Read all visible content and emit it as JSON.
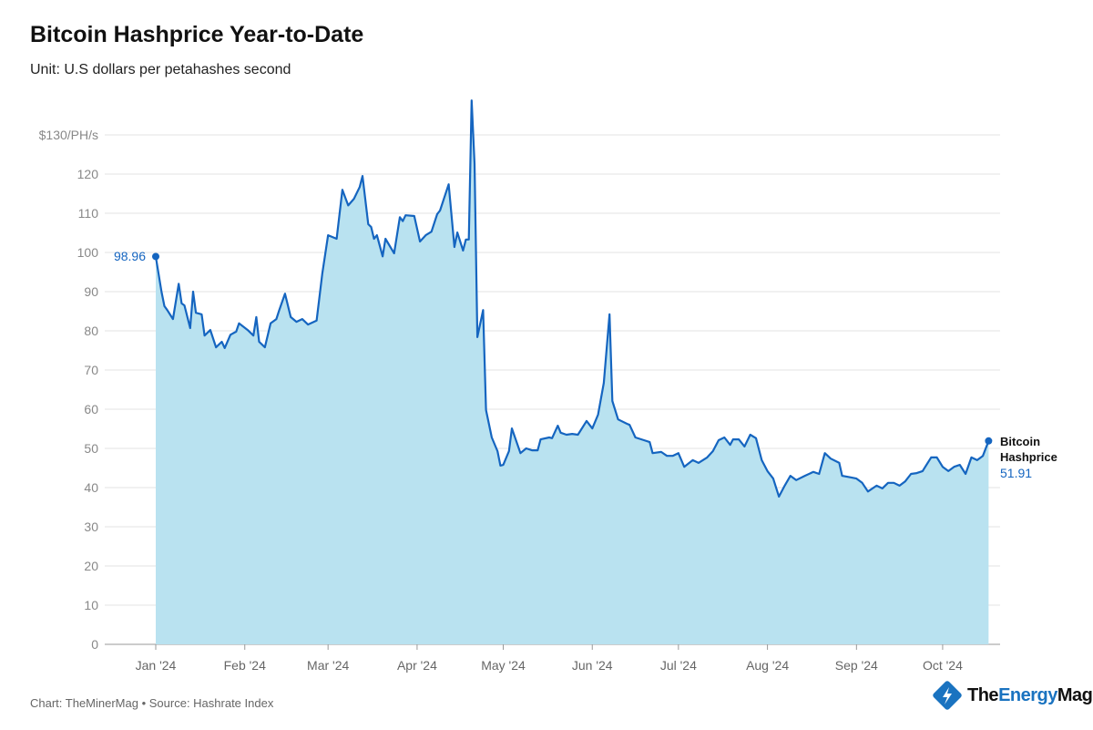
{
  "header": {
    "title": "Bitcoin Hashprice Year-to-Date",
    "subtitle": "Unit: U.S dollars per petahashes second"
  },
  "footer": {
    "credit": "Chart: TheMinerMag • Source: Hashrate Index"
  },
  "logo": {
    "part1": "The",
    "part2": "Energy",
    "part3": "Mag",
    "color": "#1a73c0"
  },
  "chart_data": {
    "type": "area",
    "title": "Bitcoin Hashprice Year-to-Date",
    "ylim": [
      0,
      130
    ],
    "yticks": [
      0,
      10,
      20,
      30,
      40,
      50,
      60,
      70,
      80,
      90,
      100,
      110,
      120,
      130
    ],
    "ytick_labels": [
      "0",
      "10",
      "20",
      "30",
      "40",
      "50",
      "60",
      "70",
      "80",
      "90",
      "100",
      "110",
      "120",
      "$130/PH/s"
    ],
    "xticks": [
      "2024-01-01",
      "2024-02-01",
      "2024-03-01",
      "2024-04-01",
      "2024-05-01",
      "2024-06-01",
      "2024-07-01",
      "2024-08-01",
      "2024-09-01",
      "2024-10-01"
    ],
    "xtick_labels": [
      "Jan '24",
      "Feb '24",
      "Mar '24",
      "Apr '24",
      "May '24",
      "Jun '24",
      "Jul '24",
      "Aug '24",
      "Sep '24",
      "Oct '24"
    ],
    "grid": true,
    "line_color": "#1565c0",
    "fill_color": "#b9e2f0",
    "series": [
      {
        "name": "Bitcoin Hashprice",
        "points": [
          [
            "2024-01-01",
            98.96
          ],
          [
            "2024-01-03",
            90
          ],
          [
            "2024-01-04",
            86.3
          ],
          [
            "2024-01-05",
            85.3
          ],
          [
            "2024-01-07",
            83
          ],
          [
            "2024-01-09",
            92
          ],
          [
            "2024-01-10",
            87
          ],
          [
            "2024-01-11",
            86.5
          ],
          [
            "2024-01-13",
            80.7
          ],
          [
            "2024-01-14",
            90
          ],
          [
            "2024-01-15",
            84.6
          ],
          [
            "2024-01-17",
            84.2
          ],
          [
            "2024-01-18",
            78.8
          ],
          [
            "2024-01-20",
            80.2
          ],
          [
            "2024-01-22",
            75.8
          ],
          [
            "2024-01-24",
            77.2
          ],
          [
            "2024-01-25",
            75.6
          ],
          [
            "2024-01-27",
            79
          ],
          [
            "2024-01-29",
            79.8
          ],
          [
            "2024-01-30",
            81.9
          ],
          [
            "2024-02-02",
            80.2
          ],
          [
            "2024-02-04",
            78.8
          ],
          [
            "2024-02-05",
            83.5
          ],
          [
            "2024-02-06",
            77.2
          ],
          [
            "2024-02-08",
            75.8
          ],
          [
            "2024-02-10",
            81.9
          ],
          [
            "2024-02-12",
            83
          ],
          [
            "2024-02-13",
            85.3
          ],
          [
            "2024-02-15",
            89.5
          ],
          [
            "2024-02-17",
            83.5
          ],
          [
            "2024-02-19",
            82.3
          ],
          [
            "2024-02-21",
            83
          ],
          [
            "2024-02-23",
            81.6
          ],
          [
            "2024-02-26",
            82.6
          ],
          [
            "2024-02-28",
            94.7
          ],
          [
            "2024-03-01",
            104.4
          ],
          [
            "2024-03-04",
            103.5
          ],
          [
            "2024-03-06",
            116
          ],
          [
            "2024-03-08",
            112
          ],
          [
            "2024-03-10",
            113.7
          ],
          [
            "2024-03-12",
            116.7
          ],
          [
            "2024-03-13",
            119.5
          ],
          [
            "2024-03-15",
            107.2
          ],
          [
            "2024-03-16",
            106.5
          ],
          [
            "2024-03-17",
            103.5
          ],
          [
            "2024-03-18",
            104.4
          ],
          [
            "2024-03-20",
            99
          ],
          [
            "2024-03-21",
            103.5
          ],
          [
            "2024-03-24",
            99.8
          ],
          [
            "2024-03-26",
            109
          ],
          [
            "2024-03-27",
            108
          ],
          [
            "2024-03-28",
            109.5
          ],
          [
            "2024-03-31",
            109.3
          ],
          [
            "2024-04-02",
            102.8
          ],
          [
            "2024-04-04",
            104.4
          ],
          [
            "2024-04-06",
            105.3
          ],
          [
            "2024-04-08",
            109.8
          ],
          [
            "2024-04-09",
            110.7
          ],
          [
            "2024-04-12",
            117.4
          ],
          [
            "2024-04-14",
            101.4
          ],
          [
            "2024-04-15",
            105.1
          ],
          [
            "2024-04-17",
            100.5
          ],
          [
            "2024-04-18",
            103.3
          ],
          [
            "2024-04-19",
            103.3
          ],
          [
            "2024-04-20",
            138.8
          ],
          [
            "2024-04-21",
            122.6
          ],
          [
            "2024-04-22",
            78.4
          ],
          [
            "2024-04-24",
            85.3
          ],
          [
            "2024-04-25",
            59.8
          ],
          [
            "2024-04-27",
            52.8
          ],
          [
            "2024-04-29",
            49.3
          ],
          [
            "2024-04-30",
            45.6
          ],
          [
            "2024-05-01",
            45.8
          ],
          [
            "2024-05-03",
            49.3
          ],
          [
            "2024-05-04",
            55.1
          ],
          [
            "2024-05-07",
            48.8
          ],
          [
            "2024-05-09",
            50
          ],
          [
            "2024-05-11",
            49.5
          ],
          [
            "2024-05-13",
            49.5
          ],
          [
            "2024-05-14",
            52.3
          ],
          [
            "2024-05-17",
            52.8
          ],
          [
            "2024-05-18",
            52.6
          ],
          [
            "2024-05-20",
            55.8
          ],
          [
            "2024-05-21",
            54
          ],
          [
            "2024-05-23",
            53.5
          ],
          [
            "2024-05-25",
            53.7
          ],
          [
            "2024-05-27",
            53.5
          ],
          [
            "2024-05-30",
            57
          ],
          [
            "2024-06-01",
            55.1
          ],
          [
            "2024-06-03",
            58.6
          ],
          [
            "2024-06-05",
            66.7
          ],
          [
            "2024-06-07",
            84.2
          ],
          [
            "2024-06-08",
            62.1
          ],
          [
            "2024-06-10",
            57.4
          ],
          [
            "2024-06-13",
            56.3
          ],
          [
            "2024-06-14",
            56
          ],
          [
            "2024-06-16",
            52.8
          ],
          [
            "2024-06-19",
            52.1
          ],
          [
            "2024-06-21",
            51.6
          ],
          [
            "2024-06-22",
            48.8
          ],
          [
            "2024-06-25",
            49.1
          ],
          [
            "2024-06-27",
            48.1
          ],
          [
            "2024-06-29",
            48.1
          ],
          [
            "2024-07-01",
            48.8
          ],
          [
            "2024-07-03",
            45.3
          ],
          [
            "2024-07-06",
            47
          ],
          [
            "2024-07-08",
            46.3
          ],
          [
            "2024-07-11",
            47.7
          ],
          [
            "2024-07-13",
            49.3
          ],
          [
            "2024-07-15",
            52.1
          ],
          [
            "2024-07-17",
            52.8
          ],
          [
            "2024-07-19",
            50.9
          ],
          [
            "2024-07-20",
            52.3
          ],
          [
            "2024-07-22",
            52.3
          ],
          [
            "2024-07-24",
            50.5
          ],
          [
            "2024-07-26",
            53.5
          ],
          [
            "2024-07-28",
            52.6
          ],
          [
            "2024-07-30",
            47
          ],
          [
            "2024-08-01",
            44.2
          ],
          [
            "2024-08-03",
            42.3
          ],
          [
            "2024-08-05",
            37.7
          ],
          [
            "2024-08-07",
            40.5
          ],
          [
            "2024-08-09",
            43
          ],
          [
            "2024-08-11",
            41.9
          ],
          [
            "2024-08-14",
            43
          ],
          [
            "2024-08-17",
            44
          ],
          [
            "2024-08-19",
            43.5
          ],
          [
            "2024-08-21",
            48.8
          ],
          [
            "2024-08-23",
            47.4
          ],
          [
            "2024-08-26",
            46.3
          ],
          [
            "2024-08-27",
            43
          ],
          [
            "2024-08-30",
            42.6
          ],
          [
            "2024-09-01",
            42.3
          ],
          [
            "2024-09-03",
            41.2
          ],
          [
            "2024-09-05",
            39
          ],
          [
            "2024-09-08",
            40.5
          ],
          [
            "2024-09-10",
            39.8
          ],
          [
            "2024-09-12",
            41.2
          ],
          [
            "2024-09-14",
            41.2
          ],
          [
            "2024-09-16",
            40.5
          ],
          [
            "2024-09-18",
            41.6
          ],
          [
            "2024-09-20",
            43.5
          ],
          [
            "2024-09-22",
            43.7
          ],
          [
            "2024-09-24",
            44.2
          ],
          [
            "2024-09-27",
            47.7
          ],
          [
            "2024-09-29",
            47.7
          ],
          [
            "2024-10-01",
            45.3
          ],
          [
            "2024-10-03",
            44.2
          ],
          [
            "2024-10-05",
            45.3
          ],
          [
            "2024-10-07",
            45.8
          ],
          [
            "2024-10-09",
            43.5
          ],
          [
            "2024-10-11",
            47.7
          ],
          [
            "2024-10-13",
            47
          ],
          [
            "2024-10-15",
            48.1
          ],
          [
            "2024-10-17",
            51.91
          ]
        ]
      }
    ],
    "annotations": {
      "start_value": "98.96",
      "end_label_line1": "Bitcoin",
      "end_label_line2": "Hashprice",
      "end_value": "51.91"
    }
  }
}
